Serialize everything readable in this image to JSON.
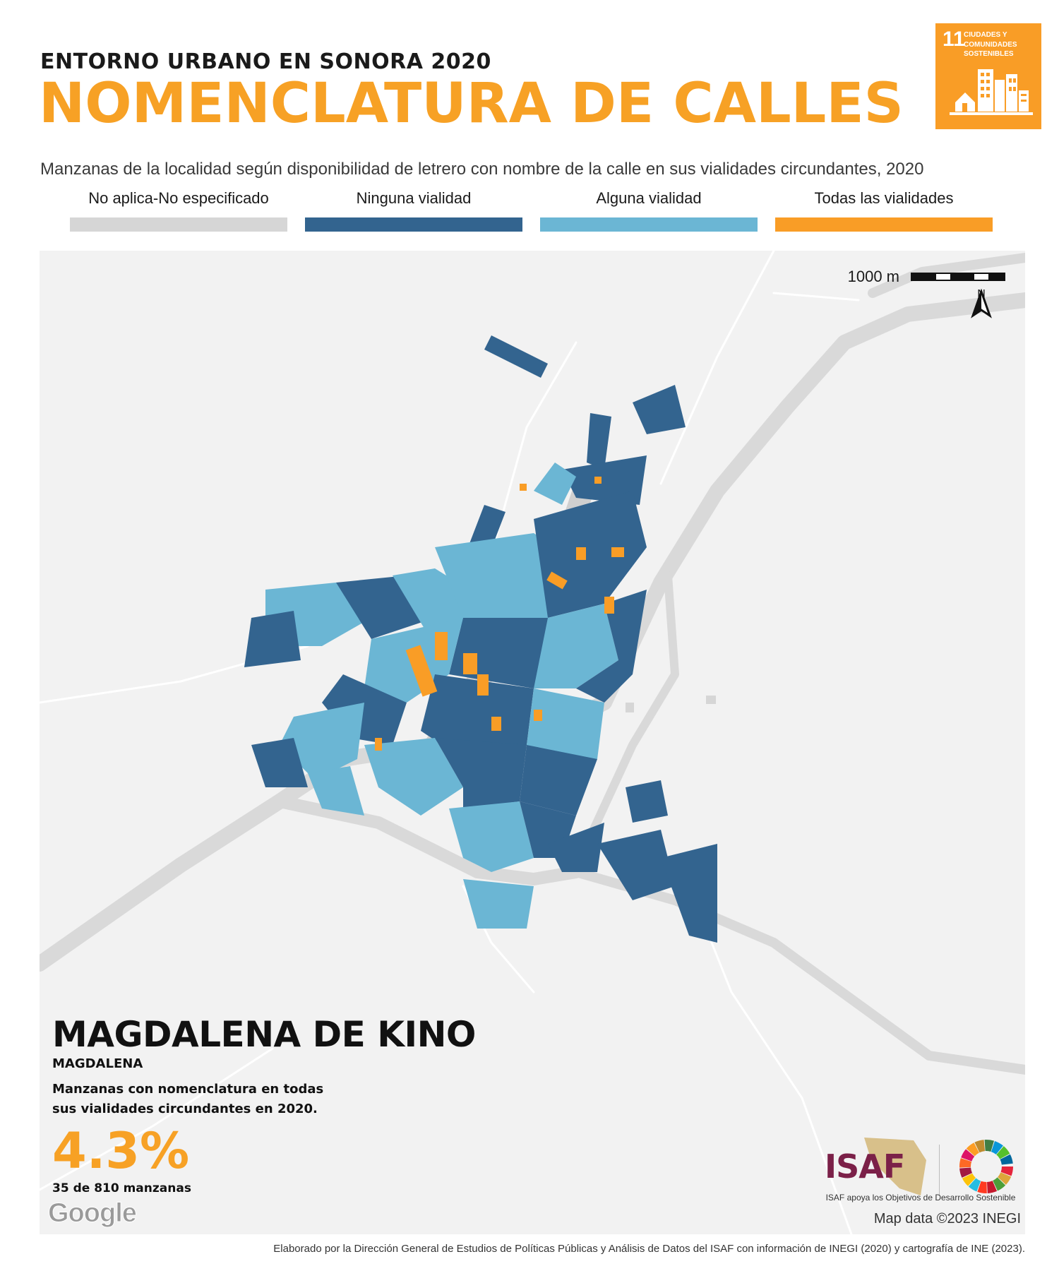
{
  "header": {
    "subtitle": "ENTORNO URBANO EN SONORA 2020",
    "title": "NOMENCLATURA DE CALLES",
    "description": "Manzanas de la localidad según disponibilidad de letrero con nombre de la calle en sus vialidades circundantes, 2020"
  },
  "sdg_badge": {
    "number": "11",
    "line1": "CIUDADES Y",
    "line2": "COMUNIDADES",
    "line3": "SOSTENIBLES",
    "color": "#f99d26"
  },
  "legend": [
    {
      "label": "No aplica-No especificado",
      "color": "#d6d6d6"
    },
    {
      "label": "Ninguna vialidad",
      "color": "#33648f"
    },
    {
      "label": "Alguna vialidad",
      "color": "#6bb6d4"
    },
    {
      "label": "Todas las vialidades",
      "color": "#f99d26"
    }
  ],
  "map": {
    "scale_label": "1000 m",
    "north_label": "N",
    "attribution": "Map data ©2023 INEGI",
    "google_label": "Google"
  },
  "place": {
    "name": "MAGDALENA DE KINO",
    "municipio": "MAGDALENA",
    "stat_description": "Manzanas con nomenclatura en todas sus vialidades circundantes en 2020.",
    "stat_value": "4.3%",
    "stat_count": "35 de 810 manzanas"
  },
  "logos": {
    "isaf": "ISAF",
    "isaf_caption": "ISAF apoya los Objetivos de Desarrollo Sostenible"
  },
  "footer": "Elaborado por la Dirección General de Estudios de Políticas Públicas y Análisis de Datos del ISAF con información de INEGI (2020) y cartografía de INE (2023)."
}
